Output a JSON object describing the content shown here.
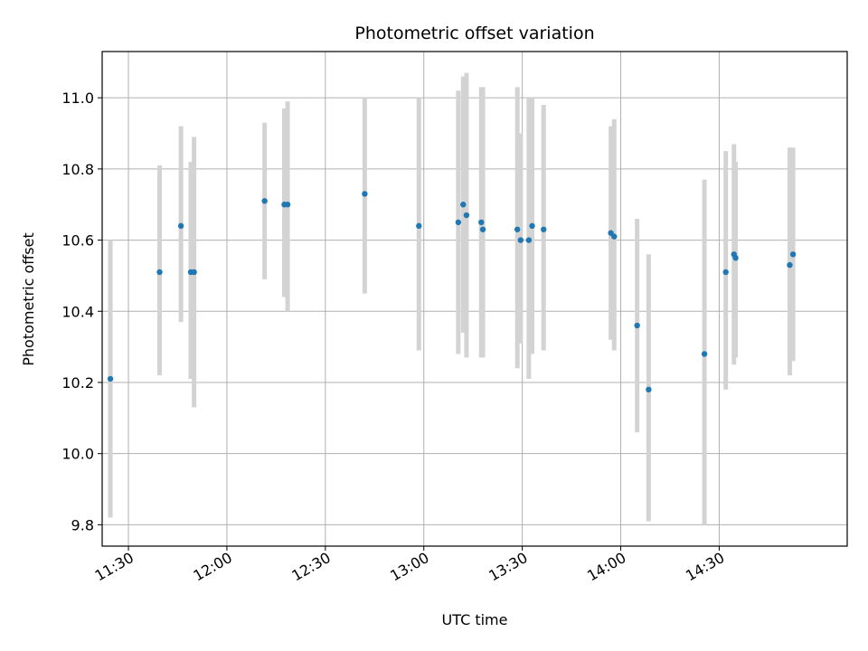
{
  "chart_data": {
    "type": "scatter",
    "title": "Photometric offset variation",
    "xlabel": "UTC time",
    "ylabel": "Photometric offset",
    "x_axis_type": "time",
    "xlim": [
      "11:22",
      "15:09"
    ],
    "ylim": [
      9.74,
      11.13
    ],
    "x_ticks": [
      "11:30",
      "12:00",
      "12:30",
      "13:00",
      "13:30",
      "14:00",
      "14:30"
    ],
    "y_ticks": [
      9.8,
      10.0,
      10.2,
      10.4,
      10.6,
      10.8,
      11.0
    ],
    "grid": true,
    "colors": {
      "point": "#1f77b4",
      "error_bar": "#d3d3d3",
      "grid": "#b0b0b0"
    },
    "points": [
      {
        "time": "11:24.5",
        "y": 10.21,
        "low": 9.82,
        "high": 10.6
      },
      {
        "time": "11:39.5",
        "y": 10.51,
        "low": 10.22,
        "high": 10.81
      },
      {
        "time": "11:46.0",
        "y": 10.64,
        "low": 10.37,
        "high": 10.92
      },
      {
        "time": "11:49.0",
        "y": 10.51,
        "low": 10.21,
        "high": 10.82
      },
      {
        "time": "11:50.0",
        "y": 10.51,
        "low": 10.13,
        "high": 10.89
      },
      {
        "time": "12:11.5",
        "y": 10.71,
        "low": 10.49,
        "high": 10.93
      },
      {
        "time": "12:17.5",
        "y": 10.7,
        "low": 10.44,
        "high": 10.97
      },
      {
        "time": "12:18.5",
        "y": 10.7,
        "low": 10.4,
        "high": 10.99
      },
      {
        "time": "12:42.0",
        "y": 10.73,
        "low": 10.45,
        "high": 11.0
      },
      {
        "time": "12:58.5",
        "y": 10.64,
        "low": 10.29,
        "high": 11.0
      },
      {
        "time": "13:10.5",
        "y": 10.65,
        "low": 10.28,
        "high": 11.02
      },
      {
        "time": "13:12.0",
        "y": 10.7,
        "low": 10.34,
        "high": 11.06
      },
      {
        "time": "13:13.0",
        "y": 10.67,
        "low": 10.27,
        "high": 11.07
      },
      {
        "time": "13:17.5",
        "y": 10.65,
        "low": 10.27,
        "high": 11.03
      },
      {
        "time": "13:18.0",
        "y": 10.63,
        "low": 10.27,
        "high": 11.03
      },
      {
        "time": "13:28.5",
        "y": 10.63,
        "low": 10.24,
        "high": 11.03
      },
      {
        "time": "13:29.5",
        "y": 10.6,
        "low": 10.31,
        "high": 10.9
      },
      {
        "time": "13:32.0",
        "y": 10.6,
        "low": 10.21,
        "high": 11.0
      },
      {
        "time": "13:33.0",
        "y": 10.64,
        "low": 10.28,
        "high": 11.0
      },
      {
        "time": "13:36.5",
        "y": 10.63,
        "low": 10.29,
        "high": 10.98
      },
      {
        "time": "13:57.0",
        "y": 10.62,
        "low": 10.32,
        "high": 10.92
      },
      {
        "time": "13:58.0",
        "y": 10.61,
        "low": 10.29,
        "high": 10.94
      },
      {
        "time": "14:05.0",
        "y": 10.36,
        "low": 10.06,
        "high": 10.66
      },
      {
        "time": "14:08.5",
        "y": 10.18,
        "low": 9.81,
        "high": 10.56
      },
      {
        "time": "14:25.5",
        "y": 10.28,
        "low": 9.8,
        "high": 10.77
      },
      {
        "time": "14:32.0",
        "y": 10.51,
        "low": 10.18,
        "high": 10.85
      },
      {
        "time": "14:34.5",
        "y": 10.56,
        "low": 10.25,
        "high": 10.87
      },
      {
        "time": "14:35.0",
        "y": 10.55,
        "low": 10.27,
        "high": 10.82
      },
      {
        "time": "14:51.5",
        "y": 10.53,
        "low": 10.22,
        "high": 10.86
      },
      {
        "time": "14:52.5",
        "y": 10.56,
        "low": 10.26,
        "high": 10.86
      }
    ]
  }
}
